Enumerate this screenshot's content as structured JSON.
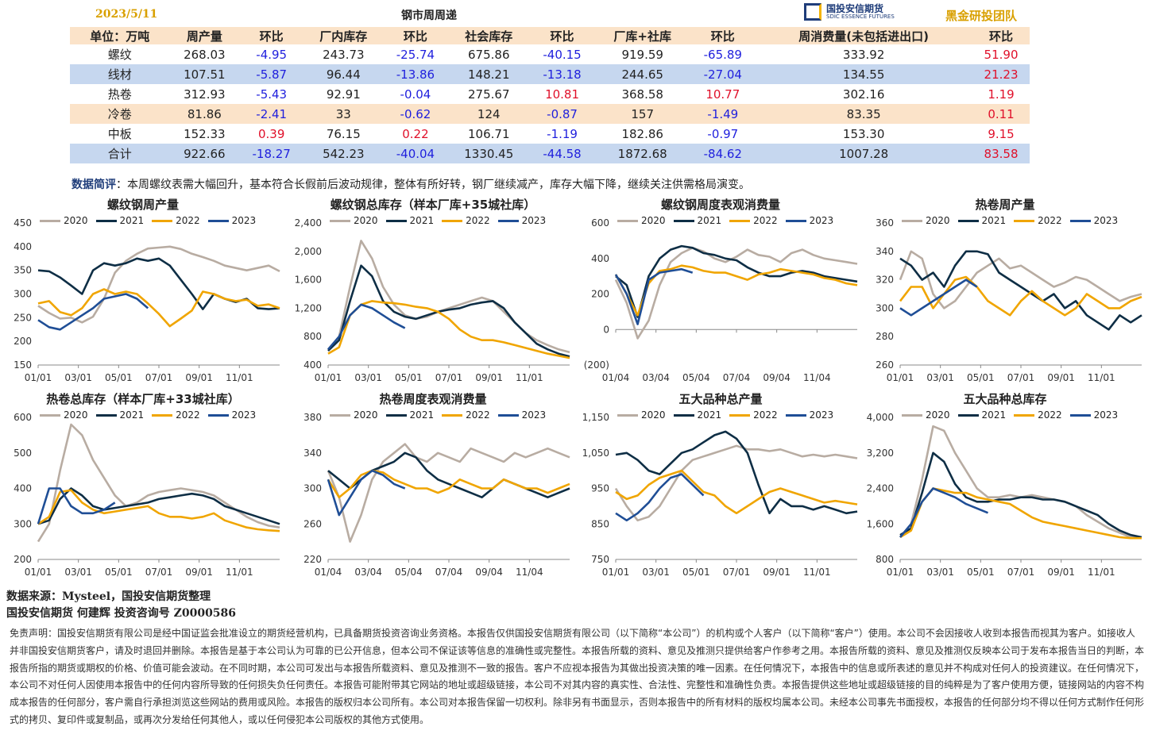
{
  "header": {
    "date": "2023/5/11",
    "title": "钢市周周递",
    "logo_text": "国投安信期货",
    "logo_sub": "SDIC ESSENCE FUTURES",
    "team": "黑金研投团队"
  },
  "table": {
    "headers": [
      "单位：万吨",
      "周产量",
      "环比",
      "厂内库存",
      "环比",
      "社会库存",
      "环比",
      "厂库+社库",
      "环比",
      "周消费量(未包括进出口)",
      "环比"
    ],
    "rows": [
      [
        "螺纹",
        "268.03",
        "-4.95",
        "243.73",
        "-25.74",
        "675.86",
        "-40.15",
        "919.59",
        "-65.89",
        "333.92",
        "51.90"
      ],
      [
        "线材",
        "107.51",
        "-5.87",
        "96.44",
        "-13.86",
        "148.21",
        "-13.18",
        "244.65",
        "-27.04",
        "134.55",
        "21.23"
      ],
      [
        "热卷",
        "312.93",
        "-5.43",
        "92.91",
        "-0.04",
        "275.67",
        "10.81",
        "368.58",
        "10.77",
        "302.16",
        "1.19"
      ],
      [
        "冷卷",
        "81.86",
        "-2.41",
        "33",
        "-0.62",
        "124",
        "-0.87",
        "157",
        "-1.49",
        "83.35",
        "0.11"
      ],
      [
        "中板",
        "152.33",
        "0.39",
        "76.15",
        "0.22",
        "106.71",
        "-1.19",
        "182.86",
        "-0.97",
        "153.30",
        "9.15"
      ],
      [
        "合计",
        "922.66",
        "-18.27",
        "542.23",
        "-40.04",
        "1330.45",
        "-44.58",
        "1872.68",
        "-84.62",
        "1007.28",
        "83.58"
      ]
    ]
  },
  "note": {
    "label": "数据简评",
    "text": "：本周螺纹表需大幅回升，基本符合长假前后波动规律，整体有所好转，钢厂继续减产，库存大幅下降，继续关注供需格局演变。"
  },
  "colors": {
    "2020": "#b8aca2",
    "2021": "#0e2e45",
    "2022": "#f0a500",
    "2023": "#1f4e96"
  },
  "chart_data": [
    {
      "type": "line",
      "title": "螺纹钢周产量",
      "ylim": [
        150,
        450
      ],
      "yticks": [
        "150",
        "200",
        "250",
        "300",
        "350",
        "400",
        "450"
      ],
      "xticks": [
        "01/01",
        "03/01",
        "05/01",
        "07/01",
        "09/01",
        "11/01"
      ],
      "series": [
        {
          "name": "2020",
          "values": [
            275,
            260,
            248,
            250,
            240,
            252,
            290,
            345,
            370,
            385,
            396,
            398,
            400,
            395,
            385,
            378,
            370,
            360,
            355,
            350,
            355,
            360,
            348
          ]
        },
        {
          "name": "2021",
          "values": [
            350,
            348,
            335,
            318,
            300,
            350,
            365,
            360,
            365,
            375,
            370,
            375,
            360,
            330,
            300,
            268,
            300,
            290,
            283,
            290,
            270,
            268,
            270
          ]
        },
        {
          "name": "2022",
          "values": [
            280,
            285,
            262,
            255,
            270,
            300,
            310,
            300,
            305,
            300,
            280,
            258,
            232,
            248,
            265,
            305,
            300,
            290,
            285,
            288,
            275,
            278,
            270
          ]
        },
        {
          "name": "2023",
          "values": [
            245,
            230,
            225,
            240,
            255,
            270,
            290,
            295,
            300,
            290,
            270
          ]
        }
      ]
    },
    {
      "type": "line",
      "title": "螺纹钢总库存（样本厂库+35城社库）",
      "ylim": [
        400,
        2400
      ],
      "yticks": [
        "400",
        "800",
        "1,200",
        "1,600",
        "2,000",
        "2,400"
      ],
      "xticks": [
        "01/01",
        "03/01",
        "05/01",
        "07/01",
        "09/01",
        "11/01"
      ],
      "series": [
        {
          "name": "2020",
          "values": [
            620,
            800,
            1500,
            2150,
            1900,
            1500,
            1250,
            1100,
            1050,
            1080,
            1150,
            1200,
            1250,
            1300,
            1350,
            1300,
            1150,
            1000,
            850,
            750,
            680,
            620,
            580
          ]
        },
        {
          "name": "2021",
          "values": [
            600,
            750,
            1300,
            1800,
            1650,
            1300,
            1150,
            1080,
            1050,
            1100,
            1150,
            1180,
            1200,
            1250,
            1280,
            1300,
            1200,
            1000,
            850,
            700,
            620,
            560,
            520
          ]
        },
        {
          "name": "2022",
          "values": [
            560,
            650,
            1100,
            1250,
            1300,
            1280,
            1270,
            1250,
            1220,
            1200,
            1150,
            1050,
            900,
            800,
            750,
            750,
            720,
            680,
            640,
            600,
            560,
            530,
            500
          ]
        },
        {
          "name": "2023",
          "values": [
            620,
            800,
            1100,
            1250,
            1200,
            1100,
            1000,
            920
          ]
        }
      ]
    },
    {
      "type": "line",
      "title": "螺纹钢周度表观消费量",
      "ylim": [
        -200,
        600
      ],
      "yticks": [
        "(200)",
        "0",
        "200",
        "400",
        "600"
      ],
      "xticks": [
        "01/04",
        "03/04",
        "05/04",
        "07/04",
        "09/04",
        "11/04"
      ],
      "series": [
        {
          "name": "2020",
          "values": [
            280,
            150,
            -50,
            50,
            250,
            380,
            430,
            460,
            440,
            400,
            380,
            410,
            450,
            420,
            410,
            380,
            430,
            450,
            420,
            400,
            390,
            380,
            370
          ]
        },
        {
          "name": "2021",
          "values": [
            300,
            250,
            70,
            300,
            400,
            450,
            470,
            460,
            430,
            420,
            400,
            390,
            350,
            320,
            300,
            300,
            320,
            330,
            320,
            300,
            290,
            280,
            270
          ]
        },
        {
          "name": "2022",
          "values": [
            310,
            200,
            80,
            260,
            330,
            340,
            360,
            350,
            330,
            320,
            320,
            300,
            280,
            310,
            320,
            340,
            330,
            320,
            310,
            290,
            280,
            260,
            250
          ]
        },
        {
          "name": "2023",
          "values": [
            310,
            200,
            30,
            280,
            320,
            330,
            340,
            320
          ]
        }
      ]
    },
    {
      "type": "line",
      "title": "热卷周产量",
      "ylim": [
        260,
        360
      ],
      "yticks": [
        "260",
        "280",
        "300",
        "320",
        "340",
        "360"
      ],
      "xticks": [
        "01/01",
        "03/01",
        "05/01",
        "07/01",
        "09/01",
        "11/01"
      ],
      "series": [
        {
          "name": "2020",
          "values": [
            320,
            340,
            335,
            310,
            300,
            305,
            315,
            325,
            330,
            335,
            328,
            330,
            325,
            320,
            315,
            318,
            322,
            320,
            315,
            310,
            305,
            308,
            310
          ]
        },
        {
          "name": "2021",
          "values": [
            335,
            330,
            320,
            325,
            315,
            330,
            340,
            340,
            338,
            325,
            320,
            315,
            310,
            305,
            310,
            300,
            305,
            295,
            290,
            285,
            295,
            290,
            295
          ]
        },
        {
          "name": "2022",
          "values": [
            305,
            315,
            315,
            300,
            310,
            320,
            322,
            315,
            305,
            300,
            295,
            305,
            312,
            305,
            300,
            295,
            300,
            310,
            305,
            300,
            300,
            305,
            308
          ]
        },
        {
          "name": "2023",
          "values": [
            300,
            295,
            300,
            305,
            310,
            315,
            320,
            315
          ]
        }
      ]
    },
    {
      "type": "line",
      "title": "热卷总库存（样本厂库+33城社库）",
      "ylim": [
        200,
        600
      ],
      "yticks": [
        "200",
        "300",
        "400",
        "500",
        "600"
      ],
      "xticks": [
        "01/01",
        "03/01",
        "05/01",
        "07/01",
        "09/01",
        "11/01"
      ],
      "series": [
        {
          "name": "2020",
          "values": [
            250,
            300,
            450,
            580,
            550,
            480,
            430,
            380,
            350,
            360,
            380,
            390,
            395,
            400,
            395,
            390,
            380,
            360,
            340,
            320,
            305,
            295,
            290
          ]
        },
        {
          "name": "2021",
          "values": [
            300,
            310,
            370,
            400,
            380,
            350,
            340,
            345,
            350,
            355,
            360,
            370,
            375,
            380,
            385,
            380,
            370,
            350,
            340,
            330,
            320,
            310,
            300
          ]
        },
        {
          "name": "2022",
          "values": [
            300,
            320,
            390,
            395,
            360,
            340,
            330,
            335,
            340,
            345,
            350,
            330,
            320,
            320,
            315,
            320,
            330,
            310,
            300,
            290,
            285,
            282,
            280
          ]
        },
        {
          "name": "2023",
          "values": [
            300,
            400,
            400,
            350,
            330,
            330,
            340,
            360
          ]
        }
      ]
    },
    {
      "type": "line",
      "title": "热卷周度表观消费量",
      "ylim": [
        220,
        380
      ],
      "yticks": [
        "220",
        "260",
        "300",
        "340",
        "380"
      ],
      "xticks": [
        "01/04",
        "03/04",
        "05/04",
        "07/04",
        "09/04",
        "11/04"
      ],
      "series": [
        {
          "name": "2020",
          "values": [
            320,
            290,
            240,
            270,
            310,
            330,
            340,
            350,
            335,
            330,
            340,
            335,
            330,
            345,
            340,
            335,
            330,
            340,
            335,
            340,
            345,
            340,
            335
          ]
        },
        {
          "name": "2021",
          "values": [
            320,
            310,
            300,
            310,
            320,
            325,
            330,
            340,
            335,
            320,
            310,
            305,
            300,
            295,
            290,
            300,
            310,
            305,
            300,
            295,
            290,
            295,
            300
          ]
        },
        {
          "name": "2022",
          "values": [
            310,
            290,
            300,
            315,
            320,
            318,
            310,
            305,
            300,
            300,
            295,
            300,
            310,
            305,
            300,
            300,
            310,
            305,
            300,
            300,
            295,
            300,
            305
          ]
        },
        {
          "name": "2023",
          "values": [
            310,
            270,
            290,
            310,
            320,
            315,
            305,
            300
          ]
        }
      ]
    },
    {
      "type": "line",
      "title": "五大品种总产量",
      "ylim": [
        750,
        1150
      ],
      "yticks": [
        "750",
        "850",
        "950",
        "1,050",
        "1,150"
      ],
      "xticks": [
        "01/01",
        "03/01",
        "05/01",
        "07/01",
        "09/01",
        "11/01"
      ],
      "series": [
        {
          "name": "2020",
          "values": [
            950,
            900,
            860,
            870,
            900,
            950,
            1000,
            1030,
            1040,
            1050,
            1060,
            1070,
            1060,
            1060,
            1055,
            1060,
            1050,
            1040,
            1045,
            1040,
            1045,
            1040,
            1035
          ]
        },
        {
          "name": "2021",
          "values": [
            1045,
            1050,
            1030,
            1000,
            990,
            1020,
            1050,
            1060,
            1080,
            1100,
            1110,
            1090,
            1050,
            960,
            880,
            920,
            900,
            900,
            890,
            900,
            890,
            880,
            885
          ]
        },
        {
          "name": "2022",
          "values": [
            940,
            920,
            930,
            960,
            980,
            990,
            1000,
            970,
            940,
            930,
            900,
            880,
            900,
            920,
            940,
            950,
            940,
            930,
            920,
            910,
            915,
            910,
            905
          ]
        },
        {
          "name": "2023",
          "values": [
            880,
            860,
            880,
            910,
            950,
            980,
            990,
            960,
            930
          ]
        }
      ]
    },
    {
      "type": "line",
      "title": "五大品种总库存",
      "ylim": [
        800,
        4000
      ],
      "yticks": [
        "800",
        "1,600",
        "2,400",
        "3,200",
        "4,000"
      ],
      "xticks": [
        "01/01",
        "03/01",
        "05/01",
        "07/01",
        "09/01",
        "11/01"
      ],
      "series": [
        {
          "name": "2020",
          "values": [
            1300,
            1600,
            2600,
            3800,
            3700,
            3200,
            2800,
            2400,
            2200,
            2200,
            2250,
            2200,
            2250,
            2200,
            2150,
            2100,
            2000,
            1800,
            1650,
            1500,
            1400,
            1300,
            1300
          ]
        },
        {
          "name": "2021",
          "values": [
            1350,
            1500,
            2300,
            3200,
            3000,
            2500,
            2200,
            2100,
            2100,
            2150,
            2150,
            2200,
            2200,
            2150,
            2150,
            2100,
            2000,
            1900,
            1800,
            1600,
            1450,
            1350,
            1300
          ]
        },
        {
          "name": "2022",
          "values": [
            1300,
            1450,
            2100,
            2400,
            2350,
            2300,
            2300,
            2200,
            2150,
            2100,
            2050,
            1900,
            1750,
            1650,
            1600,
            1550,
            1500,
            1450,
            1400,
            1350,
            1300,
            1280,
            1280
          ]
        },
        {
          "name": "2023",
          "values": [
            1300,
            1600,
            2100,
            2400,
            2300,
            2200,
            2050,
            1950,
            1850
          ]
        }
      ]
    }
  ],
  "source": "数据来源：Mysteel，国投安信期货整理",
  "author": "国投安信期货  何建辉  投资咨询号  Z0000586",
  "disclaimer": "免责声明：国投安信期货有限公司是经中国证监会批准设立的期货经营机构，已具备期货投资咨询业务资格。本报告仅供国投安信期货有限公司（以下简称“本公司”）的机构或个人客户（以下简称“客户”）使用。本公司不会因接收人收到本报告而视其为客户。如接收人并非国投安信期货客户，请及时退回并删除。本报告是基于本公司认为可靠的已公开信息，但本公司不保证该等信息的准确性或完整性。本报告所载的资料、意见及推测只提供给客户作参考之用。本报告所载的资料、意见及推测仅反映本公司于发布本报告当日的判断，本报告所指的期货或期权的价格、价值可能会波动。在不同时期，本公司可发出与本报告所载资料、意见及推测不一致的报告。客户不应视本报告为其做出投资决策的唯一因素。在任何情况下，本报告中的信息或所表述的意见并不构成对任何人的投资建议。在任何情况下，本公司不对任何人因使用本报告中的任何内容所导致的任何损失负任何责任。本报告可能附带其它网站的地址或超级链接，本公司不对其内容的真实性、合法性、完整性和准确性负责。本报告提供这些地址或超级链接的目的纯粹是为了客户使用方便，链接网站的内容不构成本报告的任何部分，客户需自行承担浏览这些网站的费用或风险。本报告的版权归本公司所有。本公司对本报告保留一切权利。除非另有书面显示，否则本报告中的所有材料的版权均属本公司。未经本公司事先书面授权，本报告的任何部分均不得以任何方式制作任何形式的拷贝、复印件或复制品，或再次分发给任何其他人，或以任何侵犯本公司版权的其他方式使用。"
}
